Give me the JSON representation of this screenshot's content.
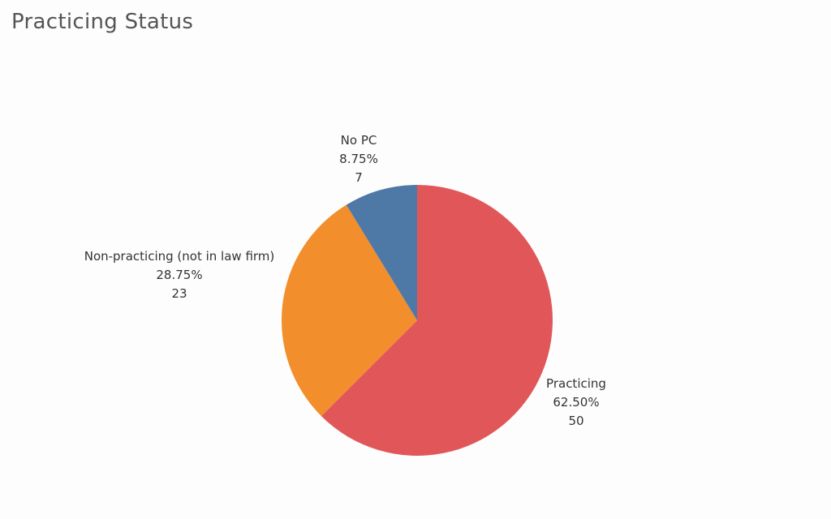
{
  "title": "Practicing Status",
  "chart_data": {
    "type": "pie",
    "title": "Practicing Status",
    "legend": "none",
    "slices": [
      {
        "label": "Practicing",
        "percent_text": "62.50%",
        "value": 50,
        "color": "#e15759"
      },
      {
        "label": "Non-practicing (not in law firm)",
        "percent_text": "28.75%",
        "value": 23,
        "color": "#f28e2b"
      },
      {
        "label": "No PC",
        "percent_text": "8.75%",
        "value": 7,
        "color": "#4e79a7"
      }
    ]
  }
}
